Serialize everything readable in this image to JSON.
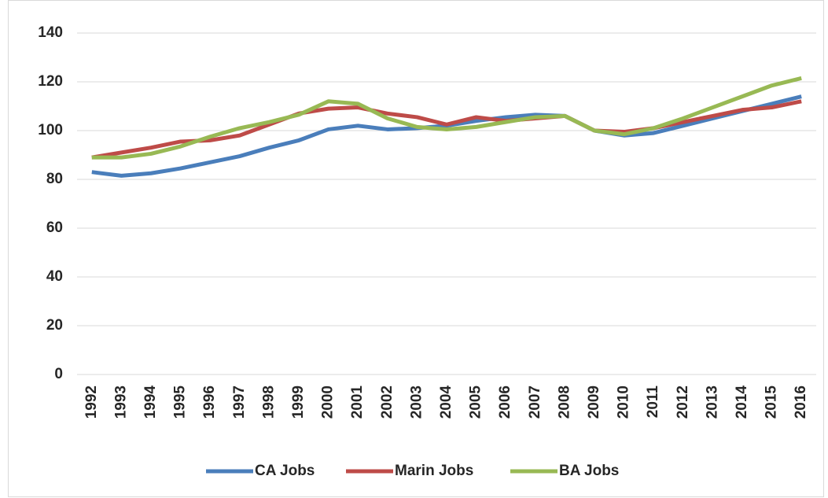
{
  "chart_data": {
    "type": "line",
    "categories": [
      "1992",
      "1993",
      "1994",
      "1995",
      "1996",
      "1997",
      "1998",
      "1999",
      "2000",
      "2001",
      "2002",
      "2003",
      "2004",
      "2005",
      "2006",
      "2007",
      "2008",
      "2009",
      "2010",
      "2011",
      "2012",
      "2013",
      "2014",
      "2015",
      "2016"
    ],
    "series": [
      {
        "name": "CA Jobs",
        "color": "#4a7ebb",
        "values": [
          83,
          81.5,
          82.5,
          84.5,
          87,
          89.5,
          93,
          96,
          100.5,
          102,
          100.5,
          101,
          102,
          104,
          105.5,
          106.5,
          106,
          100,
          98,
          99,
          102,
          105,
          108,
          111,
          114
        ]
      },
      {
        "name": "Marin Jobs",
        "color": "#be4b48",
        "values": [
          89,
          91,
          93,
          95.5,
          96,
          98,
          102.5,
          107,
          109,
          109.5,
          107,
          105.5,
          102.5,
          105.5,
          104,
          105,
          106,
          100,
          99.5,
          101,
          103.5,
          106,
          108.5,
          109.5,
          112
        ]
      },
      {
        "name": "BA Jobs",
        "color": "#98b954",
        "values": [
          89,
          89,
          90.5,
          93.5,
          97.5,
          101,
          103.5,
          106.5,
          112,
          111,
          105,
          101.5,
          100.5,
          101.5,
          103.5,
          105.5,
          106,
          100,
          98.5,
          101,
          105,
          109.5,
          114,
          118.5,
          121.5
        ]
      }
    ],
    "ylim": [
      0,
      140
    ],
    "yticks": [
      0,
      20,
      40,
      60,
      80,
      100,
      120,
      140
    ],
    "grid": true,
    "legend": "bottom"
  }
}
